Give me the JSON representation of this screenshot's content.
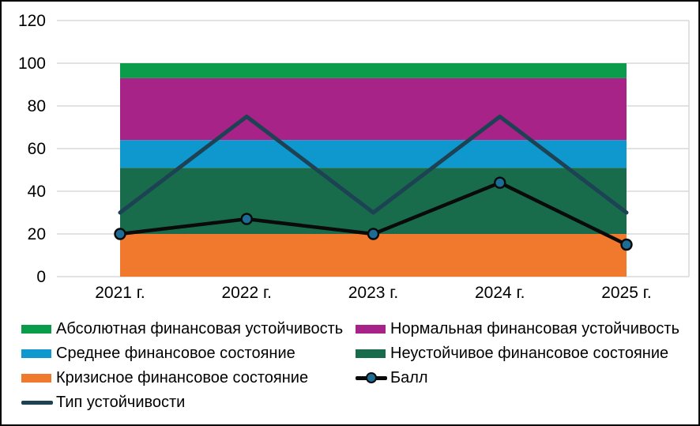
{
  "chart_data": {
    "type": "area",
    "subtype": "stacked-band-area-with-lines-combo",
    "categories": [
      "2021 г.",
      "2022 г.",
      "2023 г.",
      "2024 г.",
      "2025 г."
    ],
    "y_axis": {
      "min": 0,
      "max": 120,
      "step": 20,
      "ticks": [
        0,
        20,
        40,
        60,
        80,
        100,
        120
      ]
    },
    "grid": "horizontal",
    "grid_color": "#D9D9D9",
    "bands": [
      {
        "name": "Кризисное финансовое состояние",
        "from": 0,
        "to": 20,
        "value": 20,
        "color": "#F0792E"
      },
      {
        "name": "Неустойчивое финансовое состояние",
        "from": 20,
        "to": 51,
        "value": 31,
        "color": "#186B4B"
      },
      {
        "name": "Среднее финансовое состояние",
        "from": 51,
        "to": 64,
        "value": 13,
        "color": "#0F98CE"
      },
      {
        "name": "Нормальная финансовая устойчивость",
        "from": 64,
        "to": 93,
        "value": 29,
        "color": "#A82388"
      },
      {
        "name": "Абсолютная финансовая устойчивость",
        "from": 93,
        "to": 100,
        "value": 7,
        "color": "#0A9B4B"
      }
    ],
    "series": [
      {
        "name": "Тип устойчивости",
        "type": "line",
        "color": "#1C4254",
        "width": 5,
        "marker": null,
        "values": [
          30,
          75,
          30,
          75,
          30
        ]
      },
      {
        "name": "Балл",
        "type": "line",
        "color": "#0A0A0A",
        "width": 4.5,
        "marker": "#1D6C95",
        "values": [
          20,
          27,
          20,
          44,
          15
        ]
      }
    ],
    "legend_position": "bottom"
  },
  "legend": {
    "items": [
      {
        "label": "Абсолютная финансовая устойчивость",
        "swatch": "rect",
        "color": "#0A9B4B"
      },
      {
        "label": "Нормальная финансовая устойчивость",
        "swatch": "rect",
        "color": "#A82388"
      },
      {
        "label": "Среднее финансовое состояние",
        "swatch": "rect",
        "color": "#0F98CE"
      },
      {
        "label": "Неустойчивое финансовое состояние",
        "swatch": "rect",
        "color": "#186B4B"
      },
      {
        "label": "Кризисное финансовое состояние",
        "swatch": "rect",
        "color": "#F0792E"
      },
      {
        "label": "Балл",
        "swatch": "line-marker",
        "color": "#0A0A0A",
        "marker_color": "#1D6C95"
      },
      {
        "label": "Тип устойчивости",
        "swatch": "line",
        "color": "#1C4254"
      }
    ]
  },
  "colors": {
    "background": "#FFFFFF",
    "border": "#000000",
    "axis_text": "#000000"
  }
}
